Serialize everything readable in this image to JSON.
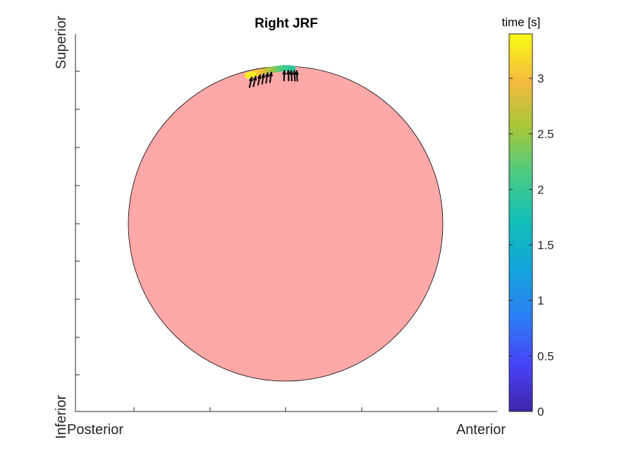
{
  "chart_data": {
    "type": "scatter",
    "title": "Right JRF",
    "x_axis": {
      "label_left": "Posterior",
      "label_right": "Anterior"
    },
    "y_axis": {
      "label_bottom": "Inferior",
      "label_top": "Superior"
    },
    "colorbar": {
      "label": "time [s]",
      "range": [
        0,
        3.4
      ],
      "ticks": [
        "0",
        "0.5",
        "1",
        "1.5",
        "2",
        "2.5",
        "3"
      ],
      "colormap": "parula"
    },
    "circle_color": "#ffa8a8",
    "arrow_color": "#000000",
    "grid": false,
    "path_points": [
      {
        "t": 1.9,
        "x": 0.045,
        "y": 0.985
      },
      {
        "t": 1.95,
        "x": 0.02,
        "y": 0.987
      },
      {
        "t": 2.0,
        "x": -0.005,
        "y": 0.988
      },
      {
        "t": 2.1,
        "x": -0.03,
        "y": 0.986
      },
      {
        "t": 2.2,
        "x": -0.06,
        "y": 0.982
      },
      {
        "t": 2.4,
        "x": -0.09,
        "y": 0.978
      },
      {
        "t": 2.6,
        "x": -0.12,
        "y": 0.972
      },
      {
        "t": 2.8,
        "x": -0.15,
        "y": 0.965
      },
      {
        "t": 3.0,
        "x": -0.18,
        "y": 0.958
      },
      {
        "t": 3.2,
        "x": -0.21,
        "y": 0.95
      },
      {
        "t": 3.4,
        "x": -0.24,
        "y": 0.942
      }
    ],
    "force_vectors": [
      {
        "x": 0.075,
        "y": 0.985,
        "dx": -0.005,
        "dy": 0.07
      },
      {
        "x": 0.06,
        "y": 0.985,
        "dx": -0.005,
        "dy": 0.07
      },
      {
        "x": 0.04,
        "y": 0.986,
        "dx": -0.005,
        "dy": 0.07
      },
      {
        "x": 0.02,
        "y": 0.987,
        "dx": -0.003,
        "dy": 0.07
      },
      {
        "x": -0.01,
        "y": 0.986,
        "dx": 0.002,
        "dy": 0.07
      },
      {
        "x": -0.1,
        "y": 0.976,
        "dx": 0.01,
        "dy": 0.07
      },
      {
        "x": -0.125,
        "y": 0.972,
        "dx": 0.012,
        "dy": 0.07
      },
      {
        "x": -0.15,
        "y": 0.966,
        "dx": 0.012,
        "dy": 0.07
      },
      {
        "x": -0.175,
        "y": 0.96,
        "dx": 0.013,
        "dy": 0.07
      },
      {
        "x": -0.205,
        "y": 0.95,
        "dx": 0.015,
        "dy": 0.07
      },
      {
        "x": -0.23,
        "y": 0.944,
        "dx": 0.015,
        "dy": 0.07
      }
    ]
  }
}
